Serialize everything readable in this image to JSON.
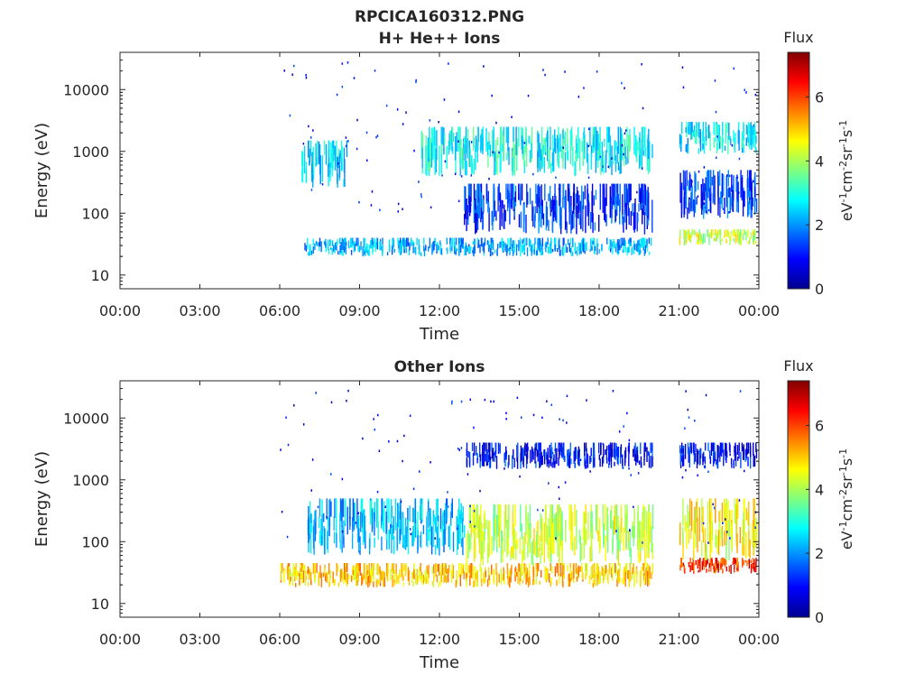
{
  "figure": {
    "title_lines": [
      "RPCICA160312.PNG",
      "H+ He++ Ions"
    ]
  },
  "chart_data": [
    {
      "type": "heatmap",
      "title": "H+ He++ Ions",
      "xlabel": "Time",
      "ylabel": "Energy (eV)",
      "x_tick_labels": [
        "00:00",
        "03:00",
        "06:00",
        "09:00",
        "12:00",
        "15:00",
        "18:00",
        "21:00",
        "00:00"
      ],
      "y_tick_labels": [
        "10",
        "100",
        "1000",
        "10000"
      ],
      "y_scale": "log",
      "ylim": [
        6,
        40000
      ],
      "xlim_hours": [
        0,
        24
      ],
      "data_gaps_hours": [
        [
          0,
          6
        ],
        [
          20.0,
          21.0
        ]
      ],
      "colorbar": {
        "title": "Flux",
        "label": "eV-1cm-2sr-1s-1",
        "range": [
          0,
          7.4
        ],
        "ticks": [
          "0",
          "2",
          "4",
          "6"
        ],
        "colormap": "jet"
      },
      "bands": [
        {
          "t": [
            6.9,
            20.0
          ],
          "e": [
            20,
            40
          ],
          "level": 2.2
        },
        {
          "t": [
            21.0,
            23.9
          ],
          "e": [
            30,
            55
          ],
          "level": 4.2
        },
        {
          "t": [
            12.9,
            20.0
          ],
          "e": [
            45,
            300
          ],
          "level": 1.3
        },
        {
          "t": [
            21.0,
            23.9
          ],
          "e": [
            80,
            500
          ],
          "level": 1.4
        },
        {
          "t": [
            6.8,
            8.5
          ],
          "e": [
            250,
            1500
          ],
          "level": 2.6
        },
        {
          "t": [
            11.3,
            20.0
          ],
          "e": [
            400,
            2500
          ],
          "level": 2.8
        },
        {
          "t": [
            21.0,
            23.9
          ],
          "e": [
            900,
            3000
          ],
          "level": 2.6
        }
      ]
    },
    {
      "type": "heatmap",
      "title": "Other Ions",
      "xlabel": "Time",
      "ylabel": "Energy (eV)",
      "x_tick_labels": [
        "00:00",
        "03:00",
        "06:00",
        "09:00",
        "12:00",
        "15:00",
        "18:00",
        "21:00",
        "00:00"
      ],
      "y_tick_labels": [
        "10",
        "100",
        "1000",
        "10000"
      ],
      "y_scale": "log",
      "ylim": [
        6,
        40000
      ],
      "xlim_hours": [
        0,
        24
      ],
      "data_gaps_hours": [
        [
          0,
          6
        ],
        [
          20.0,
          21.0
        ]
      ],
      "colorbar": {
        "title": "Flux",
        "label": "eV-1cm-2sr-1s-1",
        "range": [
          0,
          7.4
        ],
        "ticks": [
          "0",
          "2",
          "4",
          "6"
        ],
        "colormap": "jet"
      },
      "bands": [
        {
          "t": [
            6.0,
            20.0
          ],
          "e": [
            18,
            45
          ],
          "level": 5.0
        },
        {
          "t": [
            21.0,
            23.9
          ],
          "e": [
            30,
            55
          ],
          "level": 6.2
        },
        {
          "t": [
            13.0,
            20.0
          ],
          "e": [
            40,
            400
          ],
          "level": 4.2
        },
        {
          "t": [
            21.0,
            23.9
          ],
          "e": [
            50,
            500
          ],
          "level": 4.6
        },
        {
          "t": [
            7.0,
            13.0
          ],
          "e": [
            60,
            500
          ],
          "level": 2.3
        },
        {
          "t": [
            13.0,
            20.0
          ],
          "e": [
            1500,
            4000
          ],
          "level": 1.0
        },
        {
          "t": [
            21.0,
            23.9
          ],
          "e": [
            1500,
            4000
          ],
          "level": 1.0
        }
      ]
    }
  ]
}
